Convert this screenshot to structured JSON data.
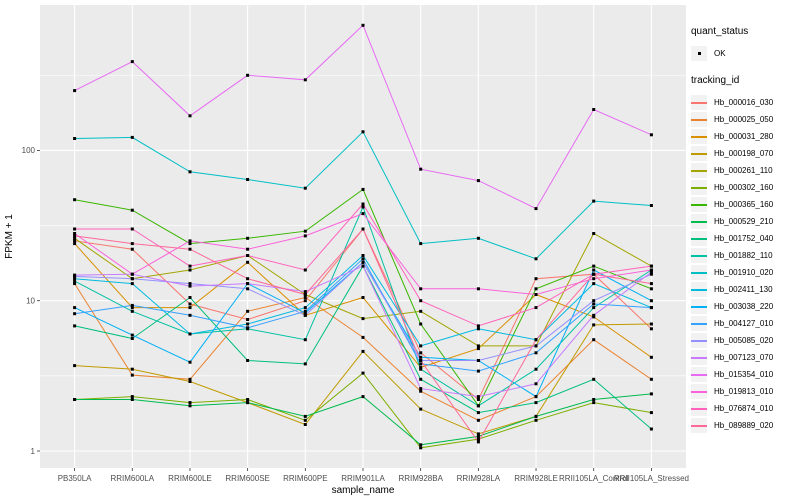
{
  "figure": {
    "panel_bg": "#EBEBEB",
    "grid_color": "#FFFFFF",
    "tick_label_color": "#4D4D4D",
    "axis_title_color": "#000000",
    "point_color": "#000000",
    "point_shape": "filled-square"
  },
  "legend": {
    "quant_status_title": "quant_status",
    "quant_status_items": [
      {
        "label": "OK"
      }
    ],
    "tracking_title": "tracking_id"
  },
  "chart_data": {
    "type": "line",
    "title": "",
    "xlabel": "sample_name",
    "ylabel": "FPKM + 1",
    "yscale": "log10",
    "ylim": [
      0.77,
      900
    ],
    "y_ticks": [
      {
        "value": 1,
        "label": "1"
      },
      {
        "value": 10,
        "label": "10"
      },
      {
        "value": 100,
        "label": "100"
      }
    ],
    "y_minor_ticks": [
      3.162,
      31.62,
      316.2
    ],
    "grid": true,
    "legend_position": "right",
    "point_legend": {
      "title": "quant_status",
      "value": "OK"
    },
    "x": [
      "PB350LA",
      "RRIM600LA",
      "RRIM600LE",
      "RRIM600SE",
      "RRIM600PE",
      "RRIM901LA",
      "RRIM928BA",
      "RRIM928LA",
      "RRIM928LE",
      "RRII105LA_Control",
      "RRII105LA_Stressed"
    ],
    "series": [
      {
        "name": "Hb_000016_030",
        "color": "#F8766D",
        "values": [
          25,
          22,
          9.5,
          7.5,
          10,
          30,
          4.5,
          2.2,
          14,
          15,
          6.5
        ]
      },
      {
        "name": "Hb_000025_050",
        "color": "#EA8331",
        "values": [
          13,
          3.2,
          3,
          8.5,
          10.5,
          5.7,
          2.5,
          1.6,
          2.3,
          5.5,
          3
        ]
      },
      {
        "name": "Hb_000031_280",
        "color": "#D89000",
        "values": [
          24,
          9,
          9,
          18,
          8,
          10.5,
          3.6,
          4.8,
          11,
          7.8,
          4.2
        ]
      },
      {
        "name": "Hb_000198_070",
        "color": "#C09B00",
        "values": [
          3.7,
          3.5,
          2.9,
          2.1,
          1.5,
          4.6,
          1.9,
          1.3,
          1.7,
          6.9,
          7
        ]
      },
      {
        "name": "Hb_000261_110",
        "color": "#A3A500",
        "values": [
          26,
          14,
          16,
          20,
          11,
          7.6,
          8.5,
          5,
          5,
          28,
          17
        ]
      },
      {
        "name": "Hb_000302_160",
        "color": "#7CAE00",
        "values": [
          2.2,
          2.3,
          2.1,
          2.2,
          1.6,
          3.3,
          1.05,
          1.2,
          1.6,
          2.1,
          1.8
        ]
      },
      {
        "name": "Hb_000365_160",
        "color": "#39B600",
        "values": [
          47,
          40,
          24,
          26,
          29,
          55,
          7,
          2,
          12,
          17,
          12
        ]
      },
      {
        "name": "Hb_000529_210",
        "color": "#00BB4E",
        "values": [
          2.2,
          2.2,
          2,
          2.1,
          1.7,
          2.3,
          1.1,
          1.25,
          1.7,
          2.2,
          2.4
        ]
      },
      {
        "name": "Hb_001752_040",
        "color": "#00BF7D",
        "values": [
          6.8,
          5.6,
          10.5,
          4,
          3.8,
          17,
          3,
          1.8,
          2.1,
          3,
          1.4
        ]
      },
      {
        "name": "Hb_001882_110",
        "color": "#00C1A3",
        "values": [
          13.5,
          8.5,
          6,
          6.5,
          5.5,
          42,
          3.5,
          2,
          3.5,
          9,
          16
        ]
      },
      {
        "name": "Hb_001910_020",
        "color": "#00BFC4",
        "values": [
          120,
          122,
          72,
          64,
          56,
          133,
          24,
          26,
          19,
          46,
          43
        ]
      },
      {
        "name": "Hb_002411_130",
        "color": "#00BAE0",
        "values": [
          14,
          13,
          6,
          7,
          9,
          20,
          5,
          6.5,
          5.5,
          13,
          9
        ]
      },
      {
        "name": "Hb_003038_220",
        "color": "#00B0F6",
        "values": [
          9,
          5.9,
          3.9,
          13,
          8.3,
          18,
          4.2,
          4,
          2.3,
          16,
          10
        ]
      },
      {
        "name": "Hb_004127_010",
        "color": "#35A2FF",
        "values": [
          8.2,
          9.3,
          8,
          6.6,
          8.5,
          19,
          3.8,
          3.4,
          4.5,
          9.5,
          9
        ]
      },
      {
        "name": "Hb_005085_020",
        "color": "#9590FF",
        "values": [
          14.5,
          14,
          13,
          12,
          8,
          18,
          4,
          4,
          5,
          10,
          15
        ]
      },
      {
        "name": "Hb_007123_070",
        "color": "#C77CFF",
        "values": [
          14.8,
          15,
          12.5,
          13,
          11.5,
          17,
          2.6,
          2.3,
          2.8,
          8,
          15.5
        ]
      },
      {
        "name": "Hb_015354_010",
        "color": "#E76BF3",
        "values": [
          250,
          390,
          170,
          316,
          295,
          680,
          75,
          63,
          41,
          187,
          127
        ]
      },
      {
        "name": "Hb_019813_010",
        "color": "#FA62DB",
        "values": [
          28,
          15,
          25,
          22,
          27,
          38,
          12,
          12,
          11,
          14,
          16
        ]
      },
      {
        "name": "Hb_076874_010",
        "color": "#FF62BC",
        "values": [
          30,
          30,
          17,
          20,
          16,
          44,
          10,
          6.8,
          9,
          15,
          17
        ]
      },
      {
        "name": "Hb_089889_020",
        "color": "#FF6A98",
        "values": [
          27,
          24,
          22,
          14,
          11,
          30,
          4,
          1.15,
          5.5,
          15,
          13
        ]
      }
    ]
  }
}
